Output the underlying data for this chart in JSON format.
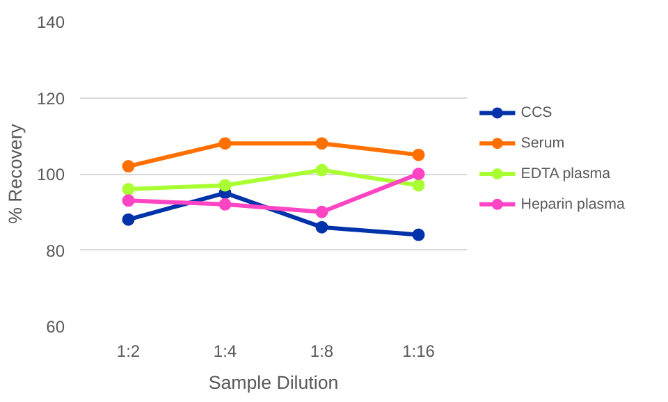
{
  "chart_data": {
    "type": "line",
    "xlabel": "Sample Dilution",
    "ylabel": "% Recovery",
    "categories": [
      "1:2",
      "1:4",
      "1:8",
      "1:16"
    ],
    "series": [
      {
        "name": "CCS",
        "color": "#0033aa",
        "values": [
          88,
          95,
          86,
          84
        ]
      },
      {
        "name": "Serum",
        "color": "#ff7000",
        "values": [
          102,
          108,
          108,
          105
        ]
      },
      {
        "name": "EDTA plasma",
        "color": "#aaff33",
        "values": [
          96,
          97,
          101,
          97
        ]
      },
      {
        "name": "Heparin plasma",
        "color": "#ff44c4",
        "values": [
          93,
          92,
          90,
          100
        ]
      }
    ],
    "ylim": [
      60,
      140
    ],
    "yticks": [
      60,
      80,
      100,
      120,
      140
    ],
    "grid": "y",
    "legend": "right",
    "marker": "circle",
    "line_style": "solid"
  }
}
